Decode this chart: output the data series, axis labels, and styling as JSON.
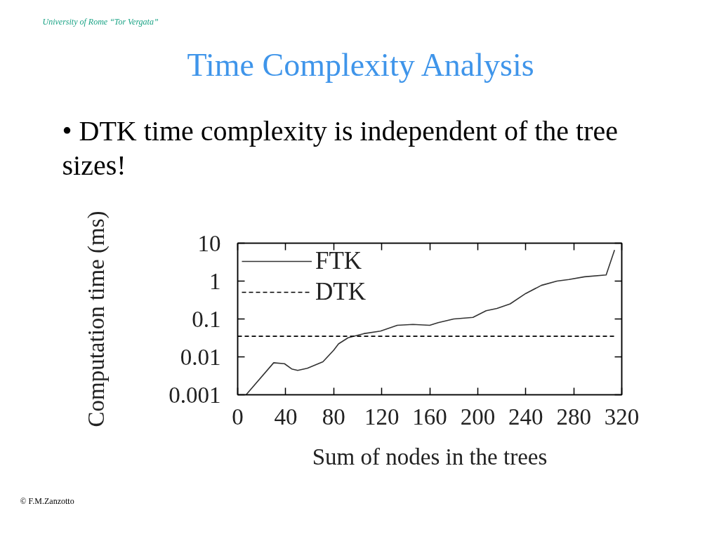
{
  "chart_data": {
    "type": "line",
    "title": "Time Complexity Analysis",
    "subtitle": "• DTK time complexity is independent of the tree sizes!",
    "xlabel": "Sum of nodes in the trees",
    "ylabel": "Computation time (ms)",
    "annotations": [
      "University of Rome “Tor Vergata”",
      "© F.M.Zanzotto"
    ],
    "xlim": [
      0,
      320
    ],
    "xticks": [
      0,
      40,
      80,
      120,
      160,
      200,
      240,
      280,
      320
    ],
    "ylim": [
      0.001,
      10
    ],
    "yticks": [
      0.001,
      0.01,
      0.1,
      1,
      10
    ],
    "log": "y",
    "grid": false,
    "legend": "top left",
    "series": [
      {
        "name": "FTK",
        "color": "#333333",
        "line_style": "solid",
        "x": [
          7,
          30,
          39,
          45,
          50,
          58,
          71,
          80,
          84,
          92,
          105,
          119,
          133,
          146,
          160,
          167,
          180,
          196,
          207,
          216,
          227,
          240,
          253,
          266,
          276,
          289,
          307,
          314
        ],
        "values": [
          0.001,
          0.007,
          0.0066,
          0.0048,
          0.0044,
          0.005,
          0.0074,
          0.015,
          0.022,
          0.032,
          0.041,
          0.048,
          0.068,
          0.072,
          0.068,
          0.08,
          0.1,
          0.11,
          0.165,
          0.19,
          0.25,
          0.47,
          0.77,
          1.0,
          1.1,
          1.3,
          1.45,
          6.6
        ]
      },
      {
        "name": "DTK",
        "color": "#000000",
        "line_style": "dashed",
        "x": [
          0,
          314
        ],
        "values": [
          0.035,
          0.035
        ]
      }
    ]
  }
}
